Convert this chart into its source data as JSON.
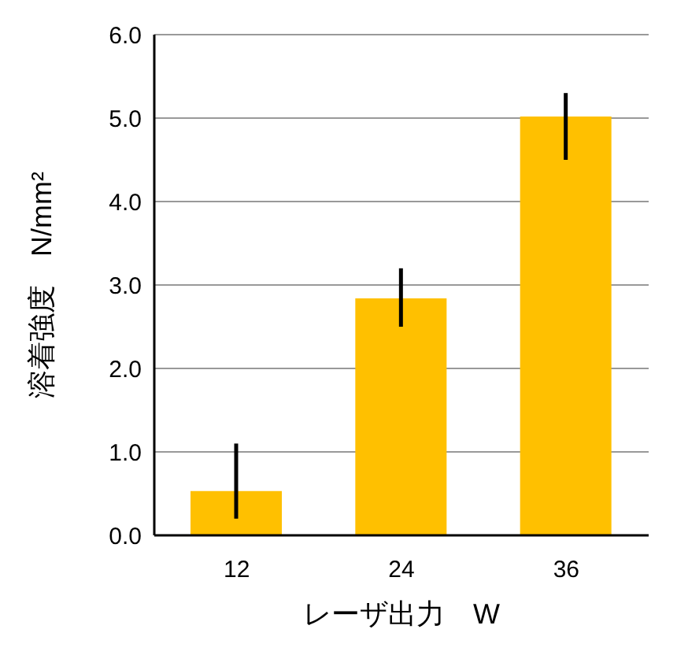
{
  "chart_data": {
    "type": "bar",
    "xlabel": "レーザ出力　W",
    "ylabel": "溶着強度　N/mm²",
    "categories": [
      "12",
      "24",
      "36"
    ],
    "values": [
      0.53,
      2.84,
      5.02
    ],
    "errors": [
      [
        0.2,
        1.1
      ],
      [
        2.5,
        3.2
      ],
      [
        4.5,
        5.3
      ]
    ],
    "color": "#ffc000",
    "ylim": [
      0,
      6
    ],
    "yticks": [
      {
        "value": 0,
        "label": "0.0"
      },
      {
        "value": 1,
        "label": "1.0"
      },
      {
        "value": 2,
        "label": "2.0"
      },
      {
        "value": 3,
        "label": "3.0"
      },
      {
        "value": 4,
        "label": "4.0"
      },
      {
        "value": 5,
        "label": "5.0"
      },
      {
        "value": 6,
        "label": "6.0"
      }
    ],
    "grid": "y"
  }
}
